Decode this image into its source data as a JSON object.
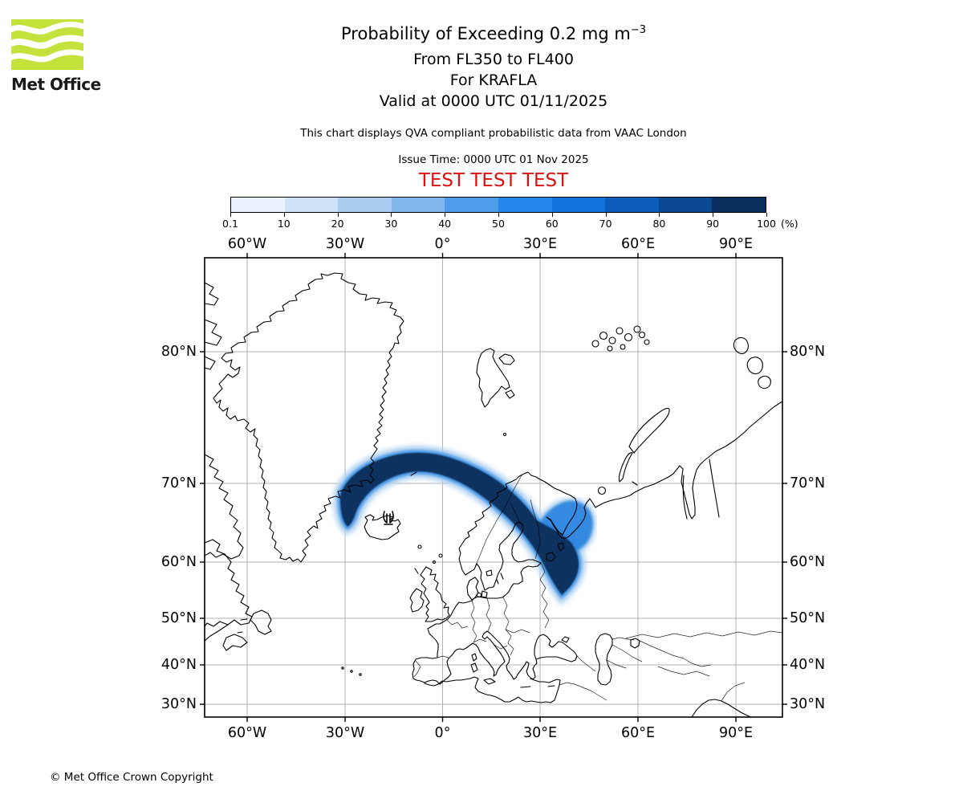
{
  "logo": {
    "brand": "Met Office"
  },
  "header": {
    "title_main": "Probability of Exceeding 0.2 mg m",
    "title_superscript": "−3",
    "subtitle_flight_levels": "From FL350 to FL400",
    "subtitle_volcano": "For KRAFLA",
    "subtitle_valid_time": "Valid at 0000 UTC 01/11/2025",
    "description": "This chart displays QVA compliant probabilistic data from VAAC London",
    "issue_time": "Issue Time: 0000 UTC 01 Nov 2025",
    "test_banner": "TEST TEST TEST"
  },
  "colorbar": {
    "tick_labels": [
      "0.1",
      "10",
      "20",
      "30",
      "40",
      "50",
      "60",
      "70",
      "80",
      "90",
      "100"
    ],
    "unit_label": "(%)",
    "colors": [
      "#eaf2fb",
      "#cfe1f6",
      "#abcef0",
      "#7fb7ec",
      "#4f9ce9",
      "#2487ec",
      "#1173dc",
      "#0d5ebc",
      "#0b4992",
      "#082f5e"
    ]
  },
  "map": {
    "x_tick_labels": [
      "60°W",
      "30°W",
      "0°",
      "30°E",
      "60°E",
      "90°E"
    ],
    "y_tick_labels": [
      "80°N",
      "70°N",
      "60°N",
      "50°N",
      "40°N",
      "30°N"
    ]
  },
  "footer": {
    "copyright": "© Met Office Crown Copyright"
  },
  "chart_data": {
    "type": "probability_contour_map",
    "title": "Probability of Exceeding 0.2 mg m⁻³",
    "layer": "From FL350 to FL400",
    "volcano": "KRAFLA",
    "valid_time": "0000 UTC 01/11/2025",
    "issue_time": "0000 UTC 01 Nov 2025",
    "data_source": "VAAC London",
    "probability_scale_percent": [
      0.1,
      10,
      20,
      30,
      40,
      50,
      60,
      70,
      80,
      90,
      100
    ],
    "scale_colors": [
      "#eaf2fb",
      "#cfe1f6",
      "#abcef0",
      "#7fb7ec",
      "#4f9ce9",
      "#2487ec",
      "#1173dc",
      "#0d5ebc",
      "#0b4992",
      "#082f5e"
    ],
    "projection": "Mercator",
    "x_ticks_longitude": [
      "60°W",
      "30°W",
      "0°",
      "30°E",
      "60°E",
      "90°E"
    ],
    "y_ticks_latitude": [
      "80°N",
      "70°N",
      "60°N",
      "50°N",
      "40°N",
      "30°N"
    ],
    "volcano_marker": {
      "name": "KRAFLA",
      "approx_lat": 65.7,
      "approx_lon": -16.8
    },
    "plume_summary": "High-probability (≥90%) ash band arcs east from Iceland across the Norwegian Sea near 70–72°N, crosses northern Scandinavia and the Kola Peninsula, then hooks south tapering to a point near 58°N 36°E; thin 10–50% fringes border the dark core."
  }
}
